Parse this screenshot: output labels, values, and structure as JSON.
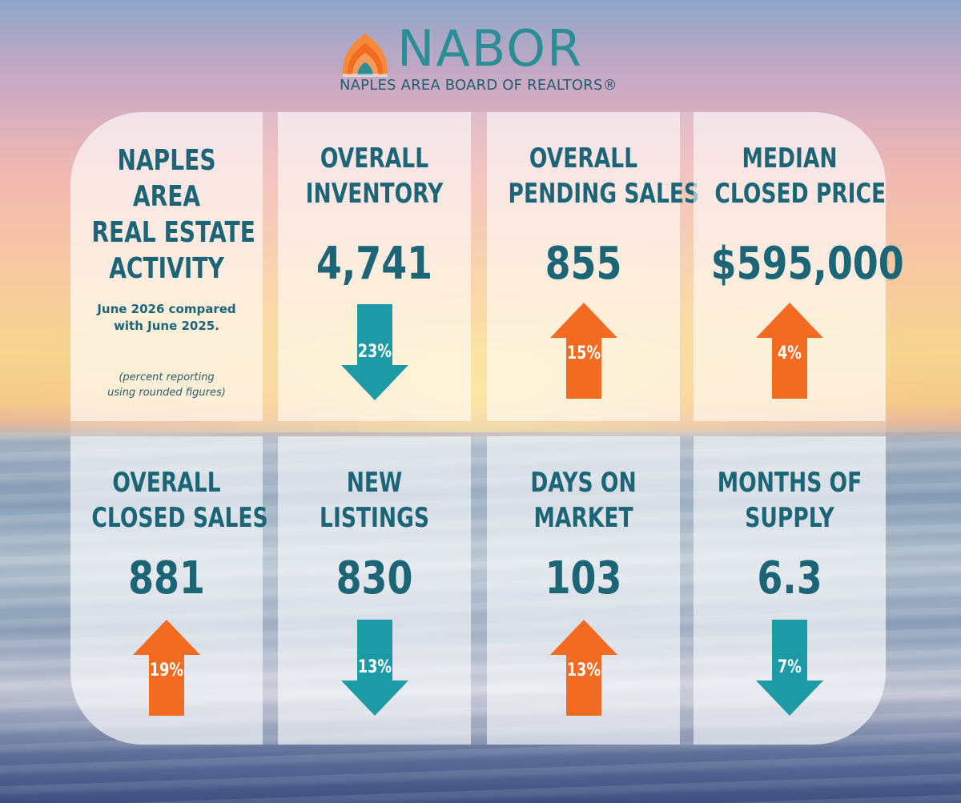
{
  "logo": {
    "name": "NABOR",
    "subtitle": "NAPLES AREA BOARD OF REALTORS®"
  },
  "intro": {
    "title_lines": [
      "NAPLES",
      "AREA",
      "REAL ESTATE",
      "ACTIVITY"
    ],
    "subtitle_lines": [
      "June 2026 compared",
      "with June 2025."
    ],
    "note_lines": [
      "(percent reporting",
      "using rounded figures)"
    ]
  },
  "colors": {
    "teal": "#1c9aa6",
    "orange": "#f26b21",
    "text": "#1c6577"
  },
  "stats": [
    {
      "title_lines": [
        "OVERALL",
        "INVENTORY"
      ],
      "value": "4,741",
      "change": "23%",
      "direction": "down"
    },
    {
      "title_lines": [
        "OVERALL",
        "PENDING SALES"
      ],
      "value": "855",
      "change": "15%",
      "direction": "up"
    },
    {
      "title_lines": [
        "MEDIAN",
        "CLOSED PRICE"
      ],
      "value": "$595,000",
      "change": "4%",
      "direction": "up"
    },
    {
      "title_lines": [
        "OVERALL",
        "CLOSED SALES"
      ],
      "value": "881",
      "change": "19%",
      "direction": "up"
    },
    {
      "title_lines": [
        "NEW",
        "LISTINGS"
      ],
      "value": "830",
      "change": "13%",
      "direction": "down"
    },
    {
      "title_lines": [
        "DAYS ON",
        "MARKET"
      ],
      "value": "103",
      "change": "13%",
      "direction": "up"
    },
    {
      "title_lines": [
        "MONTHS OF",
        "SUPPLY"
      ],
      "value": "6.3",
      "change": "7%",
      "direction": "down"
    }
  ]
}
